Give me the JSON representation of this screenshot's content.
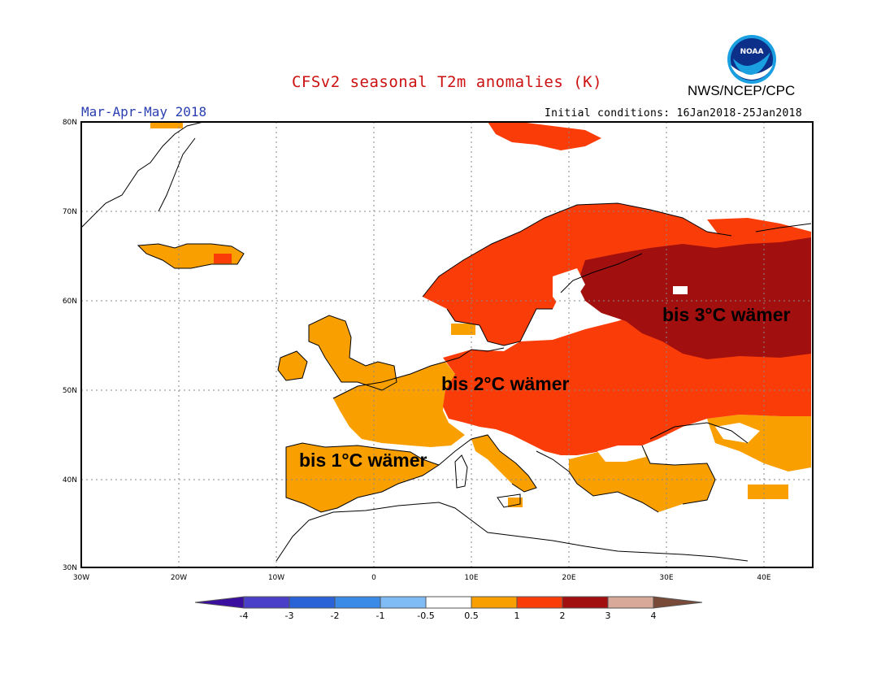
{
  "header": {
    "title": "CFSv2 seasonal T2m anomalies (K)",
    "period": "Mar-Apr-May 2018",
    "agency": "NWS/NCEP/CPC",
    "logo_text": "NOAA",
    "initial_conditions": "Initial conditions: 16Jan2018-25Jan2018"
  },
  "map": {
    "lat_labels": [
      "80N",
      "70N",
      "60N",
      "50N",
      "40N",
      "30N"
    ],
    "lon_labels": [
      "30W",
      "20W",
      "10W",
      "0",
      "10E",
      "20E",
      "30E",
      "40E"
    ],
    "extent": {
      "lon": [
        -30,
        45
      ],
      "lat": [
        30,
        80
      ]
    }
  },
  "annotations": [
    {
      "text": "bis 3°C wämer",
      "region": "western Russia"
    },
    {
      "text": "bis 2°C wämer",
      "region": "central Europe"
    },
    {
      "text": "bis 1°C wämer",
      "region": "Iberian Peninsula"
    }
  ],
  "colorbar": {
    "tick_labels": [
      "-4",
      "-3",
      "-2",
      "-1",
      "-0.5",
      "0.5",
      "1",
      "2",
      "3",
      "4"
    ],
    "colors": [
      "#3a0fa0",
      "#4a3fc8",
      "#2a62d8",
      "#3a8ae8",
      "#7fbcf5",
      "#ffffff",
      "#f9a000",
      "#fa3c08",
      "#a20f0f",
      "#d8a898",
      "#7a4a38"
    ]
  },
  "legend_colors": {
    "warm_1": "#f9a000",
    "warm_2": "#fa3c08",
    "warm_3": "#a20f0f"
  }
}
